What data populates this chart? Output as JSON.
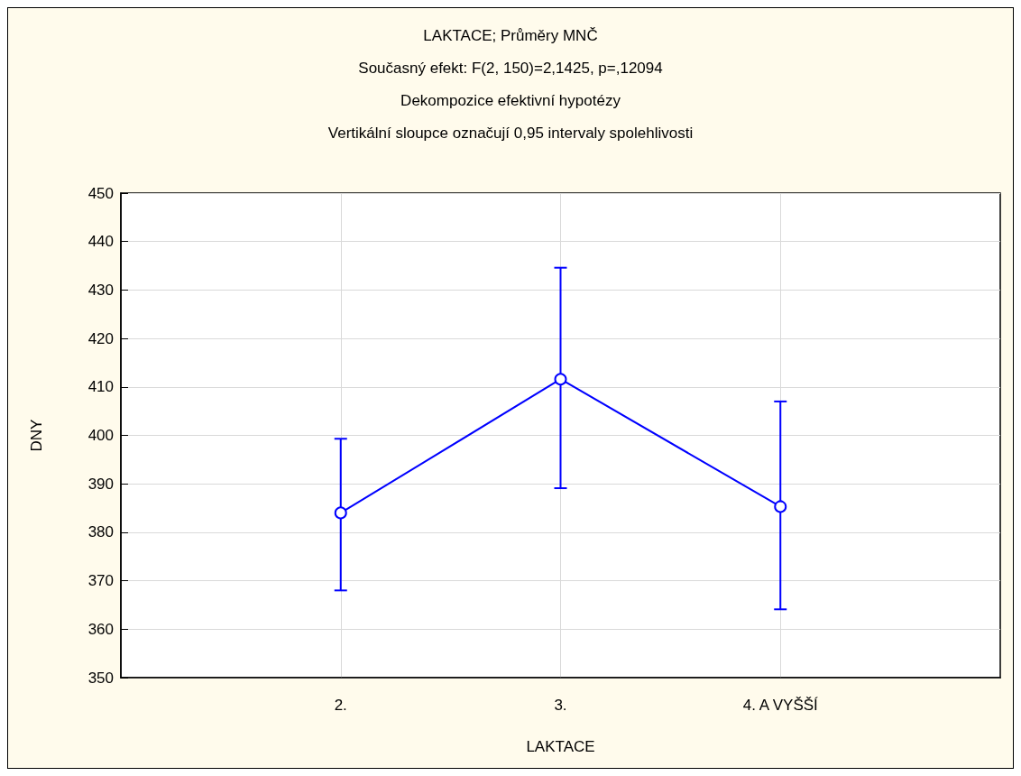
{
  "chart_data": {
    "type": "line",
    "title": "LAKTACE; Průměry MNČ",
    "subtitle": "Současný efekt: F(2, 150)=2,1425, p=,12094",
    "annotations": [
      "Dekompozice efektivní hypotézy",
      "Vertikální sloupce označují 0,95 intervaly spolehlivosti"
    ],
    "xlabel": "LAKTACE",
    "ylabel": "DNY",
    "categories": [
      "2.",
      "3.",
      "4. A VYŠŠÍ"
    ],
    "series": [
      {
        "color": "#0000ff",
        "values": [
          384,
          411.6,
          385.3
        ],
        "errors": [
          [
            368,
            399.3
          ],
          [
            389.1,
            434.6
          ],
          [
            364.1,
            407
          ]
        ]
      }
    ],
    "ylim": [
      350,
      450
    ],
    "yticks": [
      350,
      360,
      370,
      380,
      390,
      400,
      410,
      420,
      430,
      440,
      450
    ],
    "grid": true,
    "marker": "circle",
    "line_style": "solid"
  }
}
